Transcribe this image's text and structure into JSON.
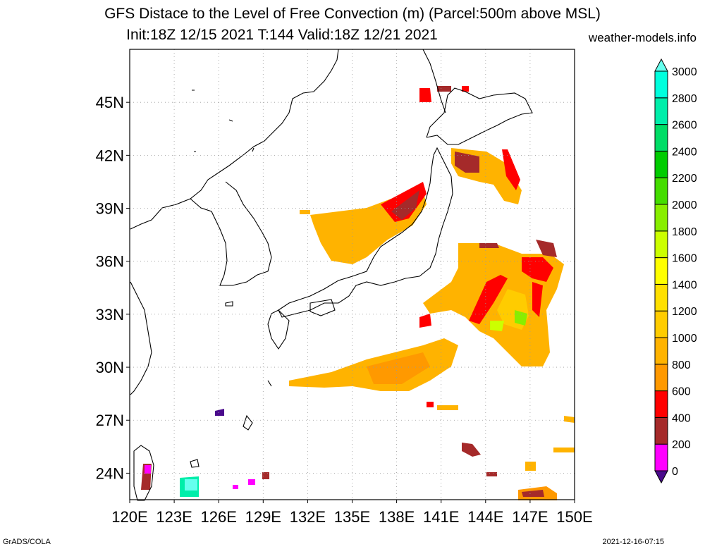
{
  "header": {
    "title": "GFS Distace to the Level of Free Convection (m) (Parcel:500m above MSL)",
    "subtitle": "Init:18Z 12/15 2021 T:144 Valid:18Z 12/21 2021",
    "site": "weather-models.info"
  },
  "footer": {
    "left": "GrADS/COLA",
    "right": "2021-12-16-07:15"
  },
  "map": {
    "lon_range": [
      120,
      150
    ],
    "lat_range": [
      22.5,
      48
    ],
    "lon_ticks": [
      "120E",
      "123E",
      "126E",
      "129E",
      "132E",
      "135E",
      "138E",
      "141E",
      "144E",
      "147E",
      "150E"
    ],
    "lat_ticks": [
      "24N",
      "27N",
      "30N",
      "33N",
      "36N",
      "39N",
      "42N",
      "45N"
    ],
    "grid": "dotted"
  },
  "colorbar": {
    "labels": [
      "0",
      "200",
      "400",
      "600",
      "800",
      "1000",
      "1200",
      "1400",
      "1600",
      "1800",
      "2000",
      "2200",
      "2400",
      "2600",
      "2800",
      "3000"
    ],
    "colors": [
      "#4a0a8c",
      "#ff00ff",
      "#a52a2a",
      "#ff0000",
      "#ff9900",
      "#ffb300",
      "#ffcc00",
      "#ffe000",
      "#ffff00",
      "#ccff00",
      "#88ee00",
      "#44dd00",
      "#00cc00",
      "#00dd66",
      "#00eeaa",
      "#00ffdd",
      "#66ffee"
    ]
  }
}
